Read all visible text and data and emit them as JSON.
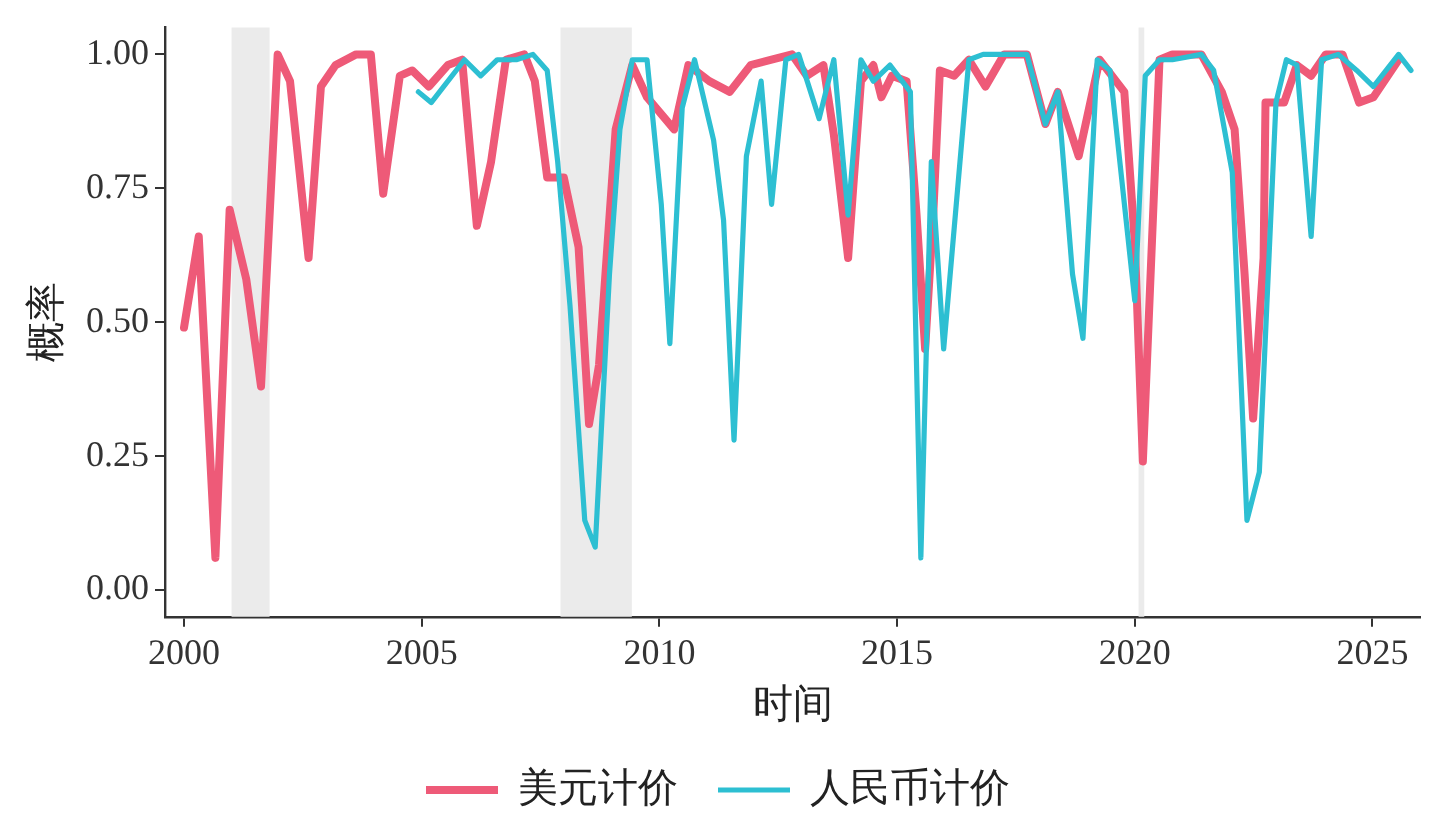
{
  "chart_data": {
    "type": "line",
    "xlabel": "时间",
    "ylabel": "概率",
    "xlim": [
      1999.6,
      2026.0
    ],
    "xticks": [
      2000,
      2005,
      2010,
      2015,
      2020,
      2025
    ],
    "ylim": [
      -0.05,
      1.05
    ],
    "yticks": [
      {
        "value": 0,
        "label": "0.00"
      },
      {
        "value": 0.25,
        "label": "0.25"
      },
      {
        "value": 0.5,
        "label": "0.50"
      },
      {
        "value": 0.75,
        "label": "0.75"
      },
      {
        "value": 1,
        "label": "1.00"
      }
    ],
    "grid": false,
    "legend": "bottom",
    "marker": "none",
    "line_style": "solid",
    "bands": [
      {
        "axis": "x",
        "from": 2001.0,
        "to": 2001.8,
        "color": "#ebebeb"
      },
      {
        "axis": "x",
        "from": 2007.92,
        "to": 2009.42,
        "color": "#ebebeb"
      },
      {
        "axis": "x",
        "from": 2020.08,
        "to": 2020.2,
        "color": "#ebebeb"
      }
    ],
    "series": [
      {
        "name": "美元计价",
        "color": "#ee5a78",
        "x": [
          2000.0,
          2000.31,
          2000.66,
          2000.96,
          2001.31,
          2001.62,
          2001.97,
          2002.23,
          2002.62,
          2002.88,
          2003.19,
          2003.62,
          2003.93,
          2004.19,
          2004.54,
          2004.8,
          2005.15,
          2005.55,
          2005.85,
          2006.16,
          2006.46,
          2006.77,
          2007.16,
          2007.38,
          2007.64,
          2007.99,
          2008.3,
          2008.52,
          2008.73,
          2009.08,
          2009.43,
          2009.74,
          2010.31,
          2010.61,
          2011.05,
          2011.48,
          2011.92,
          2012.36,
          2012.79,
          2013.1,
          2013.45,
          2013.67,
          2013.97,
          2014.24,
          2014.5,
          2014.67,
          2014.89,
          2015.2,
          2015.41,
          2015.59,
          2015.76,
          2015.9,
          2016.2,
          2016.51,
          2016.86,
          2017.25,
          2017.73,
          2018.12,
          2018.38,
          2018.82,
          2019.26,
          2019.78,
          2020.0,
          2020.17,
          2020.52,
          2020.79,
          2021.4,
          2021.83,
          2022.1,
          2022.31,
          2022.49,
          2022.71,
          2022.75,
          2023.14,
          2023.41,
          2023.71,
          2024.02,
          2024.37,
          2024.72,
          2025.02,
          2025.55
        ],
        "values": [
          0.49,
          0.66,
          0.06,
          0.71,
          0.58,
          0.38,
          1.0,
          0.95,
          0.62,
          0.94,
          0.98,
          1.0,
          1.0,
          0.74,
          0.96,
          0.97,
          0.94,
          0.98,
          0.99,
          0.68,
          0.8,
          0.99,
          1.0,
          0.95,
          0.77,
          0.77,
          0.64,
          0.31,
          0.42,
          0.86,
          0.98,
          0.92,
          0.86,
          0.98,
          0.95,
          0.93,
          0.98,
          0.99,
          1.0,
          0.96,
          0.98,
          0.85,
          0.62,
          0.95,
          0.98,
          0.92,
          0.96,
          0.95,
          0.7,
          0.45,
          0.7,
          0.97,
          0.96,
          0.99,
          0.94,
          1.0,
          1.0,
          0.87,
          0.93,
          0.81,
          0.99,
          0.93,
          0.65,
          0.24,
          0.99,
          1.0,
          1.0,
          0.93,
          0.86,
          0.59,
          0.32,
          0.62,
          0.91,
          0.91,
          0.98,
          0.96,
          1.0,
          1.0,
          0.91,
          0.92,
          0.99
        ]
      },
      {
        "name": "人民币计价",
        "color": "#2dbfd2",
        "x": [
          2004.93,
          2005.2,
          2005.9,
          2006.24,
          2006.59,
          2006.99,
          2007.34,
          2007.64,
          2007.86,
          2008.12,
          2008.43,
          2008.65,
          2008.95,
          2009.17,
          2009.43,
          2009.74,
          2010.04,
          2010.22,
          2010.48,
          2010.74,
          2011.14,
          2011.35,
          2011.57,
          2011.83,
          2012.14,
          2012.36,
          2012.66,
          2012.93,
          2013.36,
          2013.67,
          2013.97,
          2014.24,
          2014.5,
          2014.85,
          2015.28,
          2015.5,
          2015.72,
          2015.98,
          2016.51,
          2016.81,
          2017.16,
          2017.73,
          2018.12,
          2018.38,
          2018.69,
          2018.91,
          2019.21,
          2019.48,
          2020.0,
          2020.22,
          2020.52,
          2020.79,
          2021.4,
          2021.66,
          2022.05,
          2022.36,
          2022.62,
          2022.97,
          2023.19,
          2023.41,
          2023.71,
          2023.93,
          2024.28,
          2024.67,
          2025.02,
          2025.55,
          2025.81
        ],
        "values": [
          0.93,
          0.91,
          0.99,
          0.96,
          0.99,
          0.99,
          1.0,
          0.97,
          0.8,
          0.53,
          0.13,
          0.08,
          0.59,
          0.86,
          0.99,
          0.99,
          0.72,
          0.46,
          0.9,
          0.99,
          0.84,
          0.69,
          0.28,
          0.81,
          0.95,
          0.72,
          0.99,
          1.0,
          0.88,
          0.99,
          0.7,
          0.99,
          0.95,
          0.98,
          0.93,
          0.06,
          0.8,
          0.45,
          0.99,
          1.0,
          1.0,
          1.0,
          0.87,
          0.93,
          0.59,
          0.47,
          0.99,
          0.97,
          0.54,
          0.96,
          0.99,
          0.99,
          1.0,
          0.97,
          0.78,
          0.13,
          0.22,
          0.91,
          0.99,
          0.98,
          0.66,
          0.99,
          1.0,
          0.97,
          0.94,
          1.0,
          0.97
        ]
      }
    ]
  }
}
